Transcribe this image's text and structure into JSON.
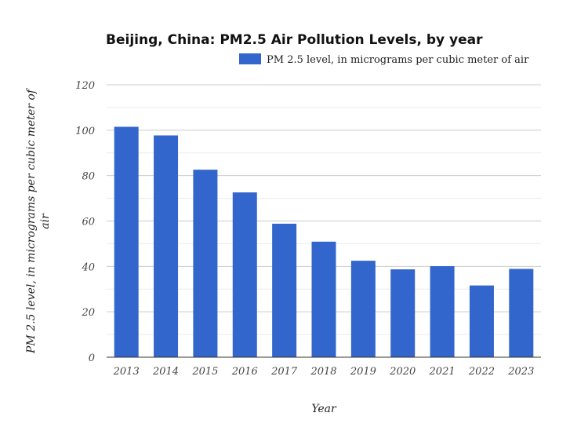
{
  "chart_data": {
    "type": "bar",
    "title": "Beijing, China: PM2.5 Air Pollution Levels, by year",
    "xlabel": "Year",
    "ylabel": "PM 2.5 level, in micrograms per cubic meter of air",
    "ylabel_lines": [
      "PM 2.5 level, in micrograms per cubic meter of",
      "air"
    ],
    "categories": [
      "2013",
      "2014",
      "2015",
      "2016",
      "2017",
      "2018",
      "2019",
      "2020",
      "2021",
      "2022",
      "2023"
    ],
    "series": [
      {
        "name": "PM 2.5 level, in micrograms per cubic meter of air",
        "values": [
          101.5,
          97.7,
          82.6,
          72.6,
          58.8,
          50.9,
          42.5,
          38.7,
          40.1,
          31.6,
          38.9
        ],
        "color": "#3366cc"
      }
    ],
    "ylim": [
      0,
      120
    ],
    "yticks": [
      "0",
      "20",
      "40",
      "60",
      "80",
      "100",
      "120"
    ],
    "grid": true,
    "legend_position": "top-right"
  }
}
